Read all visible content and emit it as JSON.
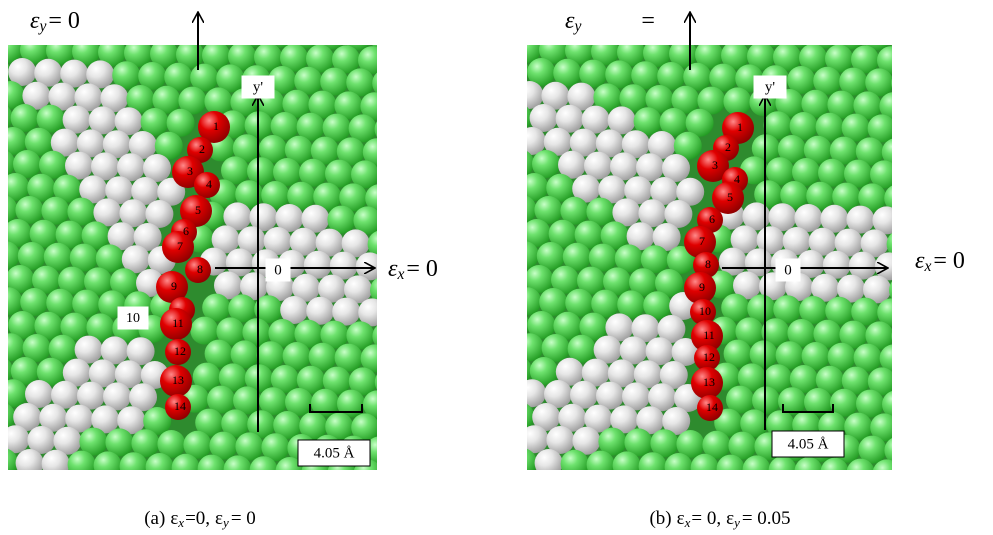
{
  "panels": [
    {
      "strain_y": {
        "symbol": "ε",
        "sub": "y",
        "eq": "= 0"
      },
      "strain_x": {
        "symbol": "ε",
        "sub": "x",
        "eq": "= 0"
      },
      "axis_y": "y'",
      "origin": "0",
      "atom_labels": [
        "1",
        "2",
        "3",
        "4",
        "5",
        "6",
        "7",
        "8",
        "9",
        "10",
        "11",
        "12",
        "13",
        "14"
      ],
      "scale_bar": "4.05 Å",
      "caption": {
        "tag": "(a)",
        "x_symbol": "ε",
        "x_sub": "x",
        "x_eq": "=0,",
        "y_symbol": "ε",
        "y_sub": "y",
        "y_eq": "= 0"
      }
    },
    {
      "strain_y": {
        "symbol": "ε",
        "sub": "y",
        "eq": "="
      },
      "strain_x": {
        "symbol": "ε",
        "sub": "x",
        "eq": "= 0"
      },
      "axis_y": "y'",
      "origin": "0",
      "atom_labels": [
        "1",
        "2",
        "3",
        "4",
        "5",
        "6",
        "7",
        "8",
        "9",
        "10",
        "11",
        "12",
        "13",
        "14"
      ],
      "scale_bar": "4.05 Å",
      "caption": {
        "tag": "(b)",
        "x_symbol": "ε",
        "x_sub": "x",
        "x_eq": "= 0,",
        "y_symbol": "ε",
        "y_sub": "y",
        "y_eq": "= 0.05"
      }
    }
  ]
}
